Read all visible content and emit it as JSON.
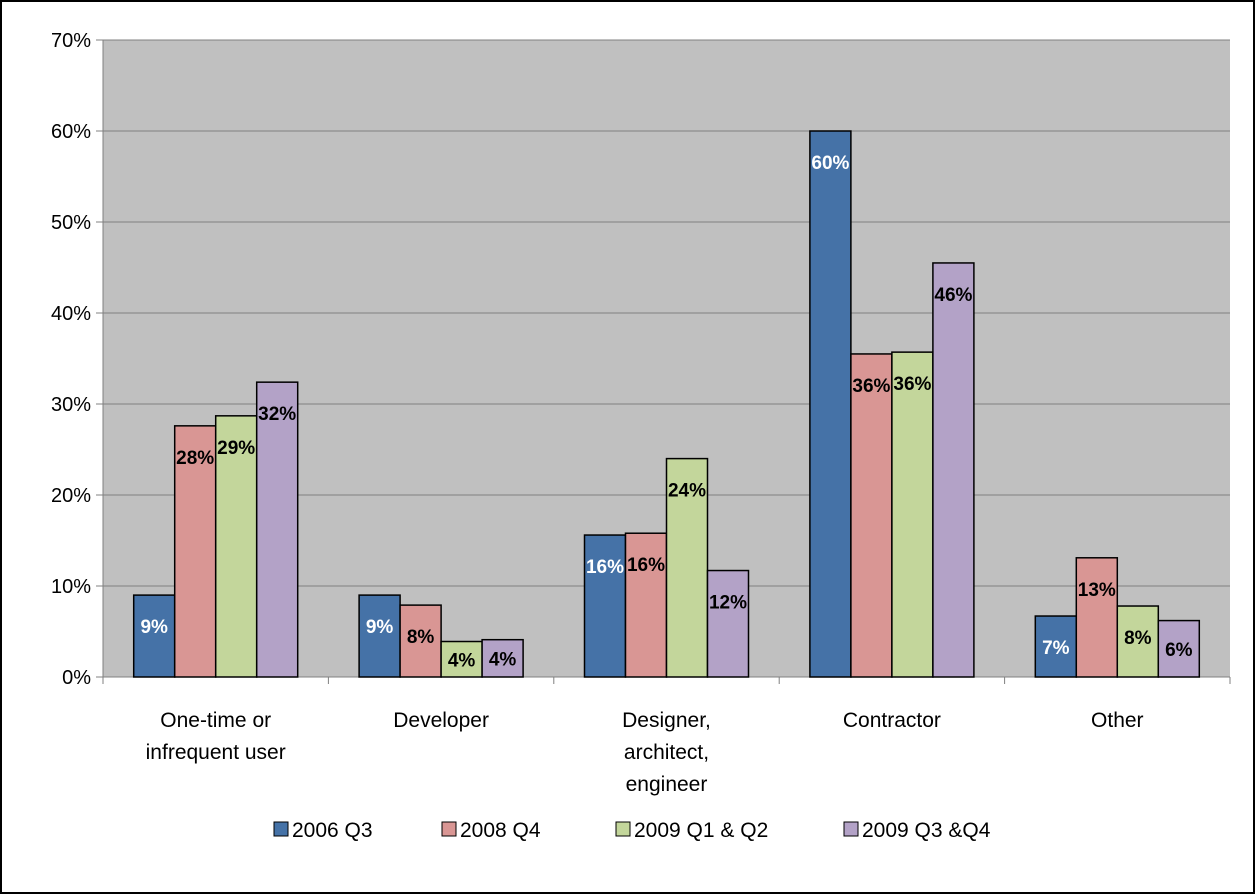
{
  "chart_data": {
    "type": "bar",
    "title": "",
    "xlabel": "",
    "ylabel": "",
    "ylim": [
      0,
      70
    ],
    "y_unit": "%",
    "y_ticks": [
      "0%",
      "10%",
      "20%",
      "30%",
      "40%",
      "50%",
      "60%",
      "70%"
    ],
    "grid": true,
    "legend_position": "bottom",
    "plot_background": "#c0c0c0",
    "categories": [
      [
        "One-time or",
        "infrequent user"
      ],
      [
        "Developer"
      ],
      [
        "Designer,",
        "architect,",
        "engineer"
      ],
      [
        "Contractor"
      ],
      [
        "Other"
      ]
    ],
    "series": [
      {
        "name": "2006 Q3",
        "color": "#4572a7",
        "label_color": "#ffffff",
        "values": [
          9,
          9,
          15.6,
          60,
          6.7
        ],
        "labels": [
          "9%",
          "9%",
          "16%",
          "60%",
          "7%"
        ]
      },
      {
        "name": "2008 Q4",
        "color": "#d99694",
        "label_color": "#000000",
        "values": [
          27.6,
          7.9,
          15.8,
          35.5,
          13.1
        ],
        "labels": [
          "28%",
          "8%",
          "16%",
          "36%",
          "13%"
        ]
      },
      {
        "name": "2009 Q1 & Q2",
        "color": "#c3d69b",
        "label_color": "#000000",
        "values": [
          28.7,
          3.9,
          24,
          35.7,
          7.8
        ],
        "labels": [
          "29%",
          "4%",
          "24%",
          "36%",
          "8%"
        ]
      },
      {
        "name": "2009 Q3 &Q4",
        "color": "#b3a2c7",
        "label_color": "#000000",
        "values": [
          32.4,
          4.1,
          11.7,
          45.5,
          6.2
        ],
        "labels": [
          "32%",
          "4%",
          "12%",
          "46%",
          "6%"
        ]
      }
    ]
  }
}
